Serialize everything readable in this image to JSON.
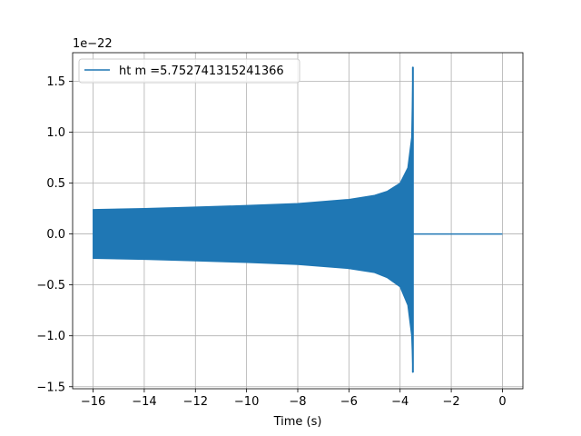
{
  "chart_data": {
    "type": "line",
    "title": "",
    "xlabel": "Time (s)",
    "ylabel": "",
    "y_scale_label": "1e−22",
    "y_scale_factor": 1e-22,
    "xlim": [
      -16.8,
      0.8
    ],
    "ylim": [
      -1.52,
      1.78
    ],
    "x_ticks": [
      -16,
      -14,
      -12,
      -10,
      -8,
      -6,
      -4,
      -2,
      0
    ],
    "x_tick_labels": [
      "−16",
      "−14",
      "−12",
      "−10",
      "−8",
      "−6",
      "−4",
      "−2",
      "0"
    ],
    "y_ticks": [
      -1.5,
      -1.0,
      -0.5,
      0.0,
      0.5,
      1.0,
      1.5
    ],
    "y_tick_labels": [
      "−1.5",
      "−1.0",
      "−0.5",
      "0.0",
      "0.5",
      "1.0",
      "1.5"
    ],
    "grid": true,
    "legend_position": "top-left",
    "series": [
      {
        "name": "ht m =5.752741315241366",
        "color": "#1f77b4",
        "description_points": {
          "upper_envelope": [
            [
              -16,
              0.24
            ],
            [
              -14,
              0.25
            ],
            [
              -12,
              0.265
            ],
            [
              -10,
              0.28
            ],
            [
              -8,
              0.3
            ],
            [
              -6,
              0.34
            ],
            [
              -5,
              0.38
            ],
            [
              -4.5,
              0.42
            ],
            [
              -4,
              0.5
            ],
            [
              -3.7,
              0.65
            ],
            [
              -3.55,
              0.95
            ],
            [
              -3.5,
              1.64
            ]
          ],
          "lower_envelope": [
            [
              -16,
              -0.24
            ],
            [
              -14,
              -0.25
            ],
            [
              -12,
              -0.265
            ],
            [
              -10,
              -0.28
            ],
            [
              -8,
              -0.3
            ],
            [
              -6,
              -0.34
            ],
            [
              -5,
              -0.38
            ],
            [
              -4.5,
              -0.43
            ],
            [
              -4,
              -0.52
            ],
            [
              -3.7,
              -0.7
            ],
            [
              -3.55,
              -1.0
            ],
            [
              -3.5,
              -1.36
            ]
          ],
          "flat_segment": [
            [
              -3.5,
              0.0
            ],
            [
              0.0,
              0.0
            ]
          ]
        }
      }
    ]
  }
}
